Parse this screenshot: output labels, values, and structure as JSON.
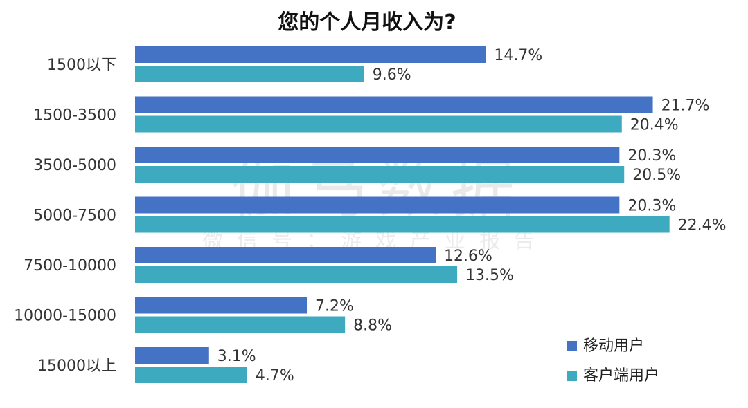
{
  "watermark": {
    "main": "伽马数据",
    "sub": "微信号：游戏产业报告"
  },
  "chart_data": {
    "type": "bar",
    "orientation": "horizontal",
    "title": "您的个人月收入为?",
    "categories": [
      "1500以下",
      "1500-3500",
      "3500-5000",
      "5000-7500",
      "7500-10000",
      "10000-15000",
      "15000以上"
    ],
    "series": [
      {
        "name": "移动用户",
        "color": "#4472C4",
        "values": [
          14.7,
          21.7,
          20.3,
          20.3,
          12.6,
          7.2,
          3.1
        ],
        "labels": [
          "14.7%",
          "21.7%",
          "20.3%",
          "20.3%",
          "12.6%",
          "7.2%",
          "3.1%"
        ]
      },
      {
        "name": "客户端用户",
        "color": "#3DAABF",
        "values": [
          9.6,
          20.4,
          20.5,
          22.4,
          13.5,
          8.8,
          4.7
        ],
        "labels": [
          "9.6%",
          "20.4%",
          "20.5%",
          "22.4%",
          "13.5%",
          "8.8%",
          "4.7%"
        ]
      }
    ],
    "xlim": [
      0,
      25
    ],
    "value_unit": "%",
    "grid": false,
    "legend_position": "bottom-right"
  }
}
